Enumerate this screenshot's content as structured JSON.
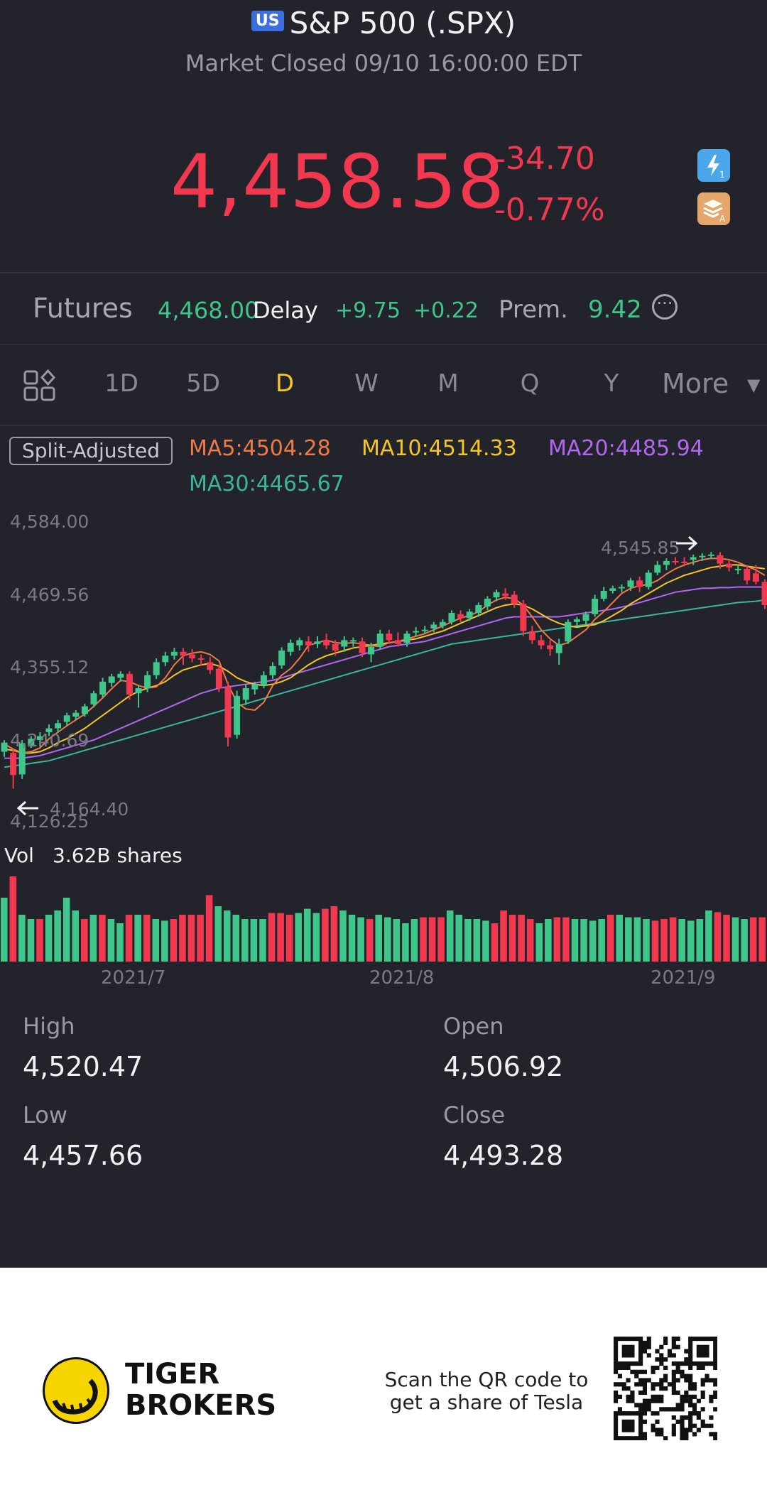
{
  "header": {
    "market_badge": "US",
    "title": "S&P 500 (.SPX)",
    "status": "Market Closed 09/10 16:00:00 EDT"
  },
  "quote": {
    "price": "4,458.58",
    "change": "-34.70",
    "change_pct": "-0.77%",
    "color": "#f2384f"
  },
  "icons": {
    "flash": "flash-1-icon",
    "layers": "layers-a-icon",
    "grid": "grid-layout-icon",
    "more": "more-circle-icon"
  },
  "futures": {
    "label": "Futures",
    "price": "4,468.00",
    "delay": "Delay",
    "change": "+9.75",
    "change_pct": "+0.22",
    "prem_label": "Prem.",
    "prem_value": "9.42",
    "color": "#3fc68a"
  },
  "tabs": [
    "1D",
    "5D",
    "D",
    "W",
    "M",
    "Q",
    "Y"
  ],
  "active_tab": "D",
  "tab_more": "More",
  "ma_legend": {
    "split_label": "Split-Adjusted",
    "ma5": "MA5:4504.28",
    "ma10": "MA10:4514.33",
    "ma20": "MA20:4485.94",
    "ma30": "MA30:4465.67",
    "colors": {
      "ma5": "#ef7a45",
      "ma10": "#f5c623",
      "ma20": "#b267f2",
      "ma30": "#3bb59c"
    }
  },
  "chart_data": {
    "type": "candlestick",
    "y_tick_labels": [
      "4,584.00",
      "4,469.56",
      "4,355.12",
      "4,240.69",
      "4,126.25"
    ],
    "ylim": [
      4126.25,
      4584.0
    ],
    "max_marker": "4,545.85",
    "min_marker": "4,164.40",
    "x_tick_labels": [
      "2021/7",
      "2021/8",
      "2021/9"
    ],
    "up_color": "#3fc68a",
    "down_color": "#f2384f",
    "candles": [
      [
        4232,
        4246,
        4224,
        4250
      ],
      [
        4230,
        4196,
        4175,
        4236
      ],
      [
        4197,
        4245,
        4190,
        4250
      ],
      [
        4240,
        4252,
        4238,
        4256
      ],
      [
        4250,
        4256,
        4240,
        4262
      ],
      [
        4262,
        4268,
        4256,
        4274
      ],
      [
        4268,
        4276,
        4262,
        4281
      ],
      [
        4278,
        4288,
        4272,
        4292
      ],
      [
        4286,
        4292,
        4280,
        4296
      ],
      [
        4290,
        4302,
        4286,
        4306
      ],
      [
        4305,
        4322,
        4300,
        4326
      ],
      [
        4320,
        4340,
        4314,
        4346
      ],
      [
        4338,
        4348,
        4332,
        4352
      ],
      [
        4346,
        4352,
        4340,
        4356
      ],
      [
        4352,
        4320,
        4312,
        4356
      ],
      [
        4322,
        4330,
        4300,
        4334
      ],
      [
        4330,
        4350,
        4324,
        4356
      ],
      [
        4350,
        4370,
        4344,
        4376
      ],
      [
        4370,
        4380,
        4364,
        4386
      ],
      [
        4380,
        4386,
        4374,
        4392
      ],
      [
        4386,
        4380,
        4366,
        4392
      ],
      [
        4382,
        4376,
        4370,
        4390
      ],
      [
        4376,
        4374,
        4364,
        4382
      ],
      [
        4370,
        4358,
        4352,
        4378
      ],
      [
        4360,
        4330,
        4324,
        4366
      ],
      [
        4332,
        4254,
        4240,
        4340
      ],
      [
        4258,
        4318,
        4252,
        4326
      ],
      [
        4312,
        4330,
        4304,
        4336
      ],
      [
        4328,
        4336,
        4320,
        4340
      ],
      [
        4334,
        4350,
        4330,
        4356
      ],
      [
        4350,
        4364,
        4344,
        4370
      ],
      [
        4365,
        4388,
        4360,
        4393
      ],
      [
        4386,
        4400,
        4380,
        4405
      ],
      [
        4396,
        4404,
        4388,
        4408
      ],
      [
        4402,
        4396,
        4386,
        4410
      ],
      [
        4398,
        4402,
        4392,
        4410
      ],
      [
        4404,
        4396,
        4390,
        4414
      ],
      [
        4398,
        4388,
        4380,
        4404
      ],
      [
        4394,
        4404,
        4386,
        4410
      ],
      [
        4404,
        4404,
        4394,
        4408
      ],
      [
        4402,
        4384,
        4378,
        4408
      ],
      [
        4382,
        4394,
        4370,
        4400
      ],
      [
        4394,
        4414,
        4390,
        4420
      ],
      [
        4414,
        4404,
        4398,
        4420
      ],
      [
        4404,
        4398,
        4394,
        4416
      ],
      [
        4400,
        4414,
        4394,
        4418
      ],
      [
        4416,
        4418,
        4410,
        4424
      ],
      [
        4418,
        4420,
        4414,
        4426
      ],
      [
        4422,
        4428,
        4416,
        4432
      ],
      [
        4426,
        4432,
        4422,
        4436
      ],
      [
        4432,
        4446,
        4428,
        4450
      ],
      [
        4444,
        4438,
        4432,
        4450
      ],
      [
        4438,
        4448,
        4434,
        4452
      ],
      [
        4446,
        4458,
        4440,
        4462
      ],
      [
        4456,
        4468,
        4450,
        4472
      ],
      [
        4470,
        4478,
        4464,
        4482
      ],
      [
        4476,
        4472,
        4466,
        4484
      ],
      [
        4474,
        4460,
        4454,
        4480
      ],
      [
        4460,
        4418,
        4410,
        4466
      ],
      [
        4418,
        4404,
        4398,
        4426
      ],
      [
        4404,
        4396,
        4390,
        4412
      ],
      [
        4396,
        4390,
        4380,
        4404
      ],
      [
        4384,
        4398,
        4366,
        4406
      ],
      [
        4402,
        4432,
        4398,
        4436
      ],
      [
        4432,
        4436,
        4426,
        4440
      ],
      [
        4434,
        4444,
        4428,
        4448
      ],
      [
        4444,
        4468,
        4440,
        4474
      ],
      [
        4468,
        4480,
        4464,
        4486
      ],
      [
        4480,
        4484,
        4476,
        4488
      ],
      [
        4484,
        4486,
        4478,
        4490
      ],
      [
        4486,
        4496,
        4480,
        4500
      ],
      [
        4496,
        4486,
        4478,
        4502
      ],
      [
        4486,
        4508,
        4482,
        4512
      ],
      [
        4508,
        4520,
        4504,
        4526
      ],
      [
        4520,
        4526,
        4512,
        4530
      ],
      [
        4526,
        4524,
        4520,
        4532
      ],
      [
        4525,
        4524,
        4518,
        4532
      ],
      [
        4528,
        4532,
        4520,
        4536
      ],
      [
        4532,
        4534,
        4526,
        4538
      ],
      [
        4535,
        4536,
        4530,
        4540
      ],
      [
        4535,
        4522,
        4514,
        4540
      ],
      [
        4522,
        4516,
        4510,
        4528
      ],
      [
        4514,
        4514,
        4506,
        4520
      ],
      [
        4514,
        4496,
        4490,
        4518
      ],
      [
        4507,
        4494,
        4490,
        4520
      ],
      [
        4494,
        4458,
        4452,
        4498
      ]
    ],
    "ma5": [
      4244,
      4236,
      4230,
      4232,
      4238,
      4252,
      4262,
      4272,
      4281,
      4290,
      4302,
      4315,
      4329,
      4342,
      4340,
      4334,
      4330,
      4332,
      4346,
      4366,
      4380,
      4384,
      4386,
      4382,
      4372,
      4336,
      4308,
      4298,
      4296,
      4308,
      4334,
      4350,
      4360,
      4376,
      4396,
      4400,
      4404,
      4400,
      4399,
      4400,
      4398,
      4396,
      4394,
      4400,
      4402,
      4406,
      4410,
      4414,
      4420,
      4426,
      4432,
      4438,
      4442,
      4448,
      4458,
      4466,
      4470,
      4468,
      4458,
      4440,
      4420,
      4406,
      4396,
      4400,
      4410,
      4420,
      4436,
      4448,
      4462,
      4476,
      4484,
      4488,
      4490,
      4496,
      4506,
      4514,
      4520,
      4524,
      4528,
      4530,
      4530,
      4528,
      4524,
      4518,
      4512,
      4504
    ],
    "ma10": [
      4236,
      4234,
      4230,
      4230,
      4232,
      4238,
      4246,
      4252,
      4260,
      4268,
      4278,
      4288,
      4298,
      4308,
      4318,
      4325,
      4330,
      4334,
      4340,
      4350,
      4358,
      4362,
      4366,
      4368,
      4364,
      4356,
      4346,
      4340,
      4336,
      4334,
      4336,
      4340,
      4346,
      4356,
      4366,
      4374,
      4380,
      4384,
      4388,
      4392,
      4394,
      4396,
      4398,
      4400,
      4402,
      4404,
      4406,
      4410,
      4414,
      4418,
      4424,
      4430,
      4436,
      4442,
      4448,
      4454,
      4458,
      4460,
      4458,
      4452,
      4444,
      4436,
      4430,
      4426,
      4424,
      4426,
      4428,
      4434,
      4442,
      4450,
      4460,
      4468,
      4476,
      4484,
      4492,
      4498,
      4504,
      4508,
      4512,
      4516,
      4518,
      4520,
      4520,
      4518,
      4516,
      4514
    ],
    "ma20": [
      4222,
      4222,
      4222,
      4224,
      4226,
      4230,
      4234,
      4238,
      4242,
      4246,
      4250,
      4256,
      4262,
      4268,
      4274,
      4280,
      4286,
      4292,
      4298,
      4304,
      4310,
      4316,
      4322,
      4326,
      4330,
      4332,
      4334,
      4336,
      4338,
      4340,
      4342,
      4346,
      4350,
      4354,
      4358,
      4362,
      4366,
      4370,
      4374,
      4378,
      4382,
      4386,
      4390,
      4394,
      4396,
      4398,
      4400,
      4402,
      4406,
      4410,
      4414,
      4418,
      4422,
      4426,
      4430,
      4434,
      4438,
      4440,
      4440,
      4440,
      4440,
      4440,
      4440,
      4442,
      4444,
      4446,
      4448,
      4450,
      4452,
      4455,
      4458,
      4462,
      4466,
      4470,
      4474,
      4478,
      4480,
      4482,
      4484,
      4484,
      4485,
      4485,
      4486,
      4486,
      4486,
      4486
    ],
    "ma30": [
      4208,
      4210,
      4212,
      4214,
      4216,
      4218,
      4222,
      4226,
      4230,
      4234,
      4238,
      4242,
      4246,
      4250,
      4254,
      4258,
      4262,
      4266,
      4270,
      4274,
      4278,
      4282,
      4286,
      4290,
      4294,
      4298,
      4302,
      4306,
      4310,
      4314,
      4318,
      4322,
      4326,
      4330,
      4334,
      4338,
      4342,
      4346,
      4350,
      4354,
      4358,
      4362,
      4366,
      4370,
      4374,
      4378,
      4382,
      4386,
      4390,
      4394,
      4398,
      4400,
      4402,
      4404,
      4406,
      4408,
      4410,
      4412,
      4414,
      4416,
      4418,
      4420,
      4422,
      4424,
      4426,
      4428,
      4430,
      4432,
      4434,
      4436,
      4438,
      4440,
      4442,
      4444,
      4446,
      4448,
      4450,
      4452,
      4454,
      4456,
      4458,
      4460,
      4462,
      4463,
      4464,
      4466
    ]
  },
  "volume": {
    "label": "Vol",
    "value": "3.62B shares",
    "bars": [
      [
        0.75,
        1
      ],
      [
        1.0,
        0
      ],
      [
        0.55,
        1
      ],
      [
        0.5,
        1
      ],
      [
        0.5,
        0
      ],
      [
        0.55,
        1
      ],
      [
        0.6,
        1
      ],
      [
        0.75,
        1
      ],
      [
        0.6,
        1
      ],
      [
        0.5,
        0
      ],
      [
        0.55,
        1
      ],
      [
        0.55,
        0
      ],
      [
        0.5,
        1
      ],
      [
        0.45,
        1
      ],
      [
        0.55,
        0
      ],
      [
        0.55,
        1
      ],
      [
        0.55,
        0
      ],
      [
        0.5,
        1
      ],
      [
        0.48,
        1
      ],
      [
        0.5,
        0
      ],
      [
        0.55,
        0
      ],
      [
        0.55,
        0
      ],
      [
        0.55,
        0
      ],
      [
        0.78,
        0
      ],
      [
        0.65,
        1
      ],
      [
        0.6,
        1
      ],
      [
        0.55,
        1
      ],
      [
        0.5,
        1
      ],
      [
        0.5,
        1
      ],
      [
        0.5,
        1
      ],
      [
        0.57,
        0
      ],
      [
        0.57,
        0
      ],
      [
        0.55,
        0
      ],
      [
        0.57,
        1
      ],
      [
        0.62,
        1
      ],
      [
        0.57,
        1
      ],
      [
        0.62,
        0
      ],
      [
        0.65,
        0
      ],
      [
        0.6,
        1
      ],
      [
        0.55,
        1
      ],
      [
        0.52,
        1
      ],
      [
        0.5,
        0
      ],
      [
        0.55,
        1
      ],
      [
        0.52,
        1
      ],
      [
        0.5,
        1
      ],
      [
        0.45,
        1
      ],
      [
        0.5,
        1
      ],
      [
        0.52,
        0
      ],
      [
        0.52,
        0
      ],
      [
        0.52,
        0
      ],
      [
        0.6,
        1
      ],
      [
        0.55,
        1
      ],
      [
        0.5,
        1
      ],
      [
        0.5,
        1
      ],
      [
        0.48,
        1
      ],
      [
        0.45,
        0
      ],
      [
        0.6,
        0
      ],
      [
        0.55,
        0
      ],
      [
        0.55,
        0
      ],
      [
        0.5,
        0
      ],
      [
        0.45,
        1
      ],
      [
        0.5,
        1
      ],
      [
        0.52,
        0
      ],
      [
        0.52,
        0
      ],
      [
        0.5,
        1
      ],
      [
        0.5,
        1
      ],
      [
        0.48,
        1
      ],
      [
        0.5,
        1
      ],
      [
        0.55,
        0
      ],
      [
        0.55,
        1
      ],
      [
        0.52,
        1
      ],
      [
        0.52,
        1
      ],
      [
        0.5,
        1
      ],
      [
        0.48,
        0
      ],
      [
        0.5,
        0
      ],
      [
        0.52,
        0
      ],
      [
        0.5,
        1
      ],
      [
        0.48,
        1
      ],
      [
        0.5,
        1
      ],
      [
        0.6,
        1
      ],
      [
        0.58,
        0
      ],
      [
        0.55,
        0
      ],
      [
        0.52,
        1
      ],
      [
        0.5,
        1
      ],
      [
        0.52,
        0
      ],
      [
        0.52,
        0
      ]
    ]
  },
  "stats": {
    "high_label": "High",
    "high": "4,520.47",
    "open_label": "Open",
    "open": "4,506.92",
    "low_label": "Low",
    "low": "4,457.66",
    "close_label": "Close",
    "close": "4,493.28"
  },
  "footer": {
    "brand_line1": "TIGER",
    "brand_line2": "BROKERS",
    "scan_line1": "Scan the QR code to",
    "scan_line2": "get a share of Tesla",
    "logo_icon": "tiger-logo-icon",
    "qr_icon": "qr-code-icon"
  }
}
